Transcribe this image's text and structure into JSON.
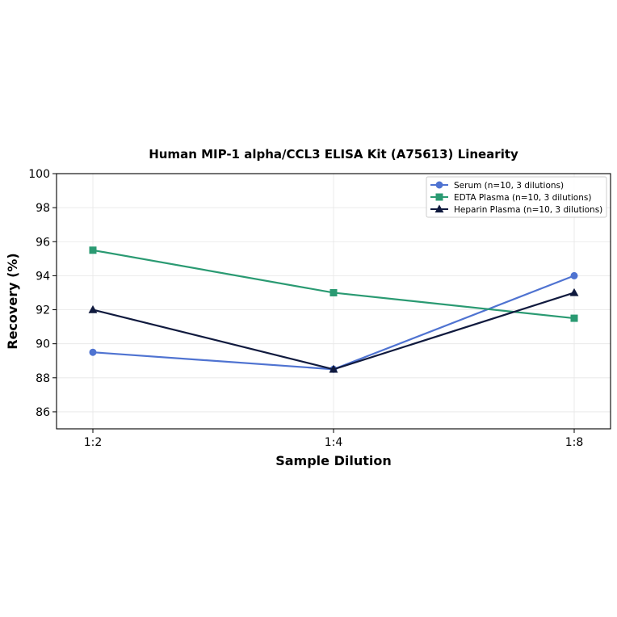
{
  "chart_data": {
    "type": "line",
    "title": "Human MIP-1 alpha/CCL3 ELISA Kit (A75613) Linearity",
    "xlabel": "Sample Dilution",
    "ylabel": "Recovery (%)",
    "categories": [
      "1:2",
      "1:4",
      "1:8"
    ],
    "ylim": [
      85,
      100
    ],
    "yticks": [
      "86",
      "88",
      "90",
      "92",
      "94",
      "96",
      "98",
      "100"
    ],
    "grid": true,
    "legend_position": "top-right",
    "series": [
      {
        "name": "Serum (n=10, 3 dilutions)",
        "values": [
          89.5,
          88.5,
          94.0
        ],
        "color": "#4f73d1",
        "marker": "circle"
      },
      {
        "name": "EDTA Plasma (n=10, 3 dilutions)",
        "values": [
          95.5,
          93.0,
          91.5
        ],
        "color": "#2a9a72",
        "marker": "square"
      },
      {
        "name": "Heparin Plasma (n=10, 3 dilutions)",
        "values": [
          92.0,
          88.5,
          93.0
        ],
        "color": "#101a3e",
        "marker": "triangle"
      }
    ]
  }
}
